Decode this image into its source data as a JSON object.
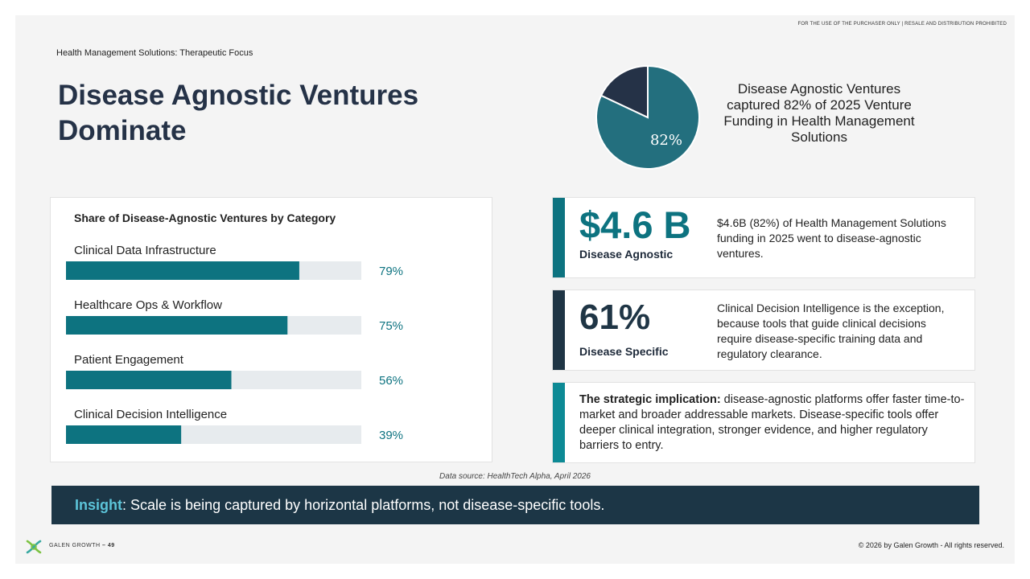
{
  "header": {
    "notice": "FOR THE USE OF THE PURCHASER ONLY | RESALE AND DISTRIBUTION PROHIBITED",
    "kicker": "Health Management Solutions: Therapeutic Focus",
    "title_line1": "Disease Agnostic Ventures",
    "title_line2": "Dominate"
  },
  "pie": {
    "label": "82%",
    "caption": "Disease Agnostic Ventures captured 82% of 2025 Venture Funding in Health Management Solutions",
    "colors": {
      "major": "#236f7e",
      "minor": "#253247"
    }
  },
  "cards": {
    "agnostic": {
      "big": "$4.6 B",
      "sub": "Disease Agnostic",
      "desc": "$4.6B (82%) of Health Management Solutions funding in 2025 went to disease-agnostic ventures.",
      "accent": "#0d7380"
    },
    "specific": {
      "big": "61%",
      "sub": "Disease Specific",
      "desc": "Clinical Decision Intelligence is the exception, because tools that guide clinical decisions require disease-specific training data and regulatory clearance.",
      "accent": "#1f3545"
    },
    "implication": {
      "lead": "The strategic implication:",
      "text": " disease-agnostic platforms offer faster time-to-market and broader addressable markets. Disease-specific tools offer deeper clinical integration, stronger evidence, and higher regulatory barriers to entry.",
      "accent": "#0d8a95"
    }
  },
  "source": "Data source: HealthTech Alpha, April 2026",
  "insight": {
    "key": "Insight",
    "sep": ":",
    "text": " Scale is being captured by horizontal platforms, not disease-specific tools."
  },
  "footer": {
    "brand": "GALEN GROWTH",
    "page": "– 49",
    "copyright": "© 2026 by Galen Growth  - All rights reserved."
  },
  "chart_data": [
    {
      "type": "pie",
      "categories": [
        "Disease Agnostic",
        "Disease Specific"
      ],
      "values": [
        82,
        18
      ],
      "data_labels": [
        "82%",
        ""
      ]
    },
    {
      "type": "bar",
      "orientation": "horizontal",
      "title": "Share of Disease-Agnostic Ventures by Category",
      "categories": [
        "Clinical Data Infrastructure",
        "Healthcare Ops & Workflow",
        "Patient Engagement",
        "Clinical Decision Intelligence"
      ],
      "values": [
        79,
        75,
        56,
        39
      ],
      "data_labels": [
        "79%",
        "75%",
        "56%",
        "39%"
      ],
      "xlim": [
        0,
        100
      ],
      "colors": {
        "bar": "#0d7380",
        "track": "#e7ebee",
        "label": "#0d7380"
      }
    }
  ]
}
